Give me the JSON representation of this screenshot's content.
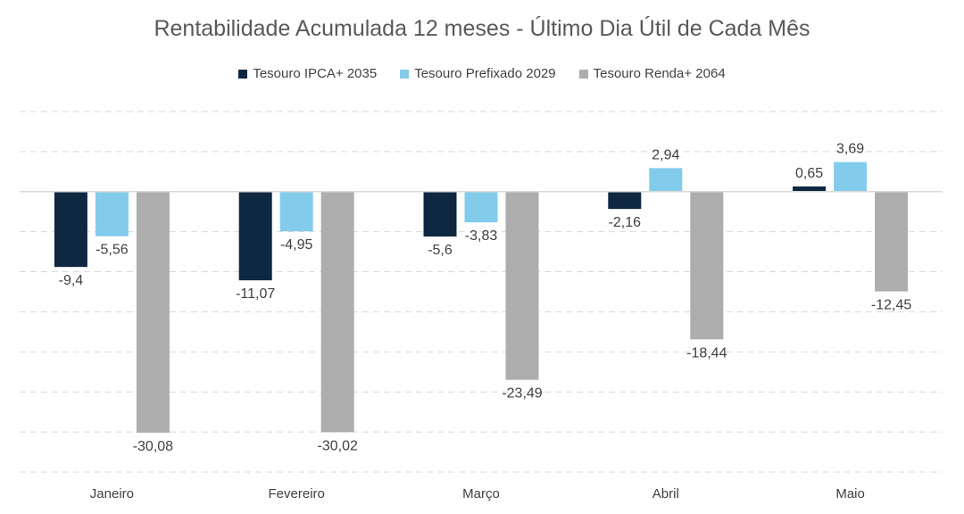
{
  "chart_data": {
    "type": "bar",
    "title": "Rentabilidade Acumulada 12 meses - Último Dia Útil de Cada Mês",
    "xlabel": "",
    "ylabel": "",
    "categories": [
      "Janeiro",
      "Fevereiro",
      "Março",
      "Abril",
      "Maio"
    ],
    "series": [
      {
        "name": "Tesouro IPCA+ 2035",
        "color": "#0e2841",
        "values": [
          -9.4,
          -11.07,
          -5.6,
          -2.16,
          0.65
        ],
        "labels": [
          "-9,4",
          "-11,07",
          "-5,6",
          "-2,16",
          "0,65"
        ]
      },
      {
        "name": "Tesouro Prefixado 2029",
        "color": "#83cbeb",
        "values": [
          -5.56,
          -4.95,
          -3.83,
          2.94,
          3.69
        ],
        "labels": [
          "-5,56",
          "-4,95",
          "-3,83",
          "2,94",
          "3,69"
        ]
      },
      {
        "name": "Tesouro Renda+ 2064",
        "color": "#adadad",
        "values": [
          -30.08,
          -30.02,
          -23.49,
          -18.44,
          -12.45
        ],
        "labels": [
          "-30,08",
          "-30,02",
          "-23,49",
          "-18,44",
          "-12,45"
        ]
      }
    ],
    "ylim": [
      -35,
      10
    ],
    "grid": true,
    "legend_position": "top"
  }
}
